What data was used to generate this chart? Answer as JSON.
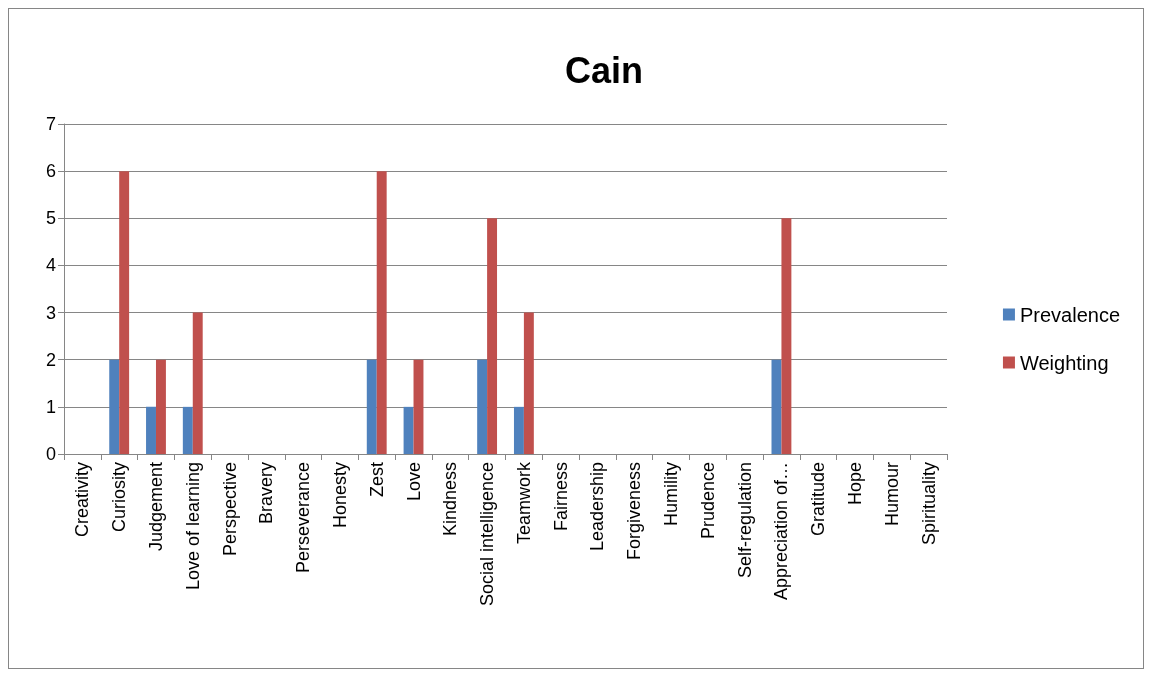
{
  "chart_data": {
    "type": "bar",
    "title": "Cain",
    "categories": [
      "Creativity",
      "Curiosity",
      "Judgement",
      "Love of learning",
      "Perspective",
      "Bravery",
      "Perseverance",
      "Honesty",
      "Zest",
      "Love",
      "Kindness",
      "Social intelligence",
      "Teamwork",
      "Fairness",
      "Leadership",
      "Forgiveness",
      "Humility",
      "Prudence",
      "Self-regulation",
      "Appreciation of…",
      "Gratitude",
      "Hope",
      "Humour",
      "Spirituality"
    ],
    "series": [
      {
        "name": "Prevalence",
        "color": "#4f81bd",
        "values": [
          0,
          2,
          1,
          1,
          0,
          0,
          0,
          0,
          2,
          1,
          0,
          2,
          1,
          0,
          0,
          0,
          0,
          0,
          0,
          2,
          0,
          0,
          0,
          0
        ]
      },
      {
        "name": "Weighting",
        "color": "#c0504d",
        "values": [
          0,
          6,
          2,
          3,
          0,
          0,
          0,
          0,
          6,
          2,
          0,
          5,
          3,
          0,
          0,
          0,
          0,
          0,
          0,
          5,
          0,
          0,
          0,
          0
        ]
      }
    ],
    "ylim": [
      0,
      7
    ],
    "yticks": [
      0,
      1,
      2,
      3,
      4,
      5,
      6,
      7
    ],
    "grid": "y",
    "legend": "right"
  }
}
